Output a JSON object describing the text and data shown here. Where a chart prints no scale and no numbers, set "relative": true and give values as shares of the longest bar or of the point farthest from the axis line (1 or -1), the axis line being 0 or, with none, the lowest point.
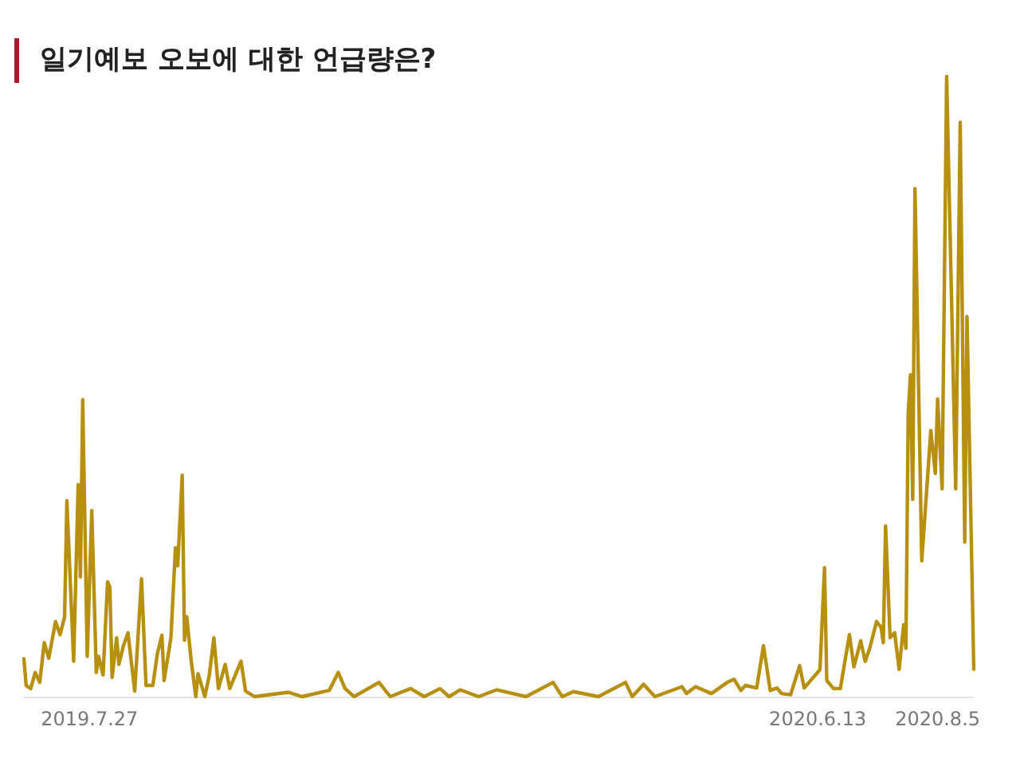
{
  "chart_data": {
    "type": "line",
    "title": "일기예보 오보에 대한 언급량은?",
    "relative": true,
    "marker": "none",
    "line_style": "solid",
    "grid": false,
    "xlim": [
      "2019-06-28",
      "2020-08-21"
    ],
    "xticks": [
      {
        "value": "2019-07-27",
        "label": "2019.7.27"
      },
      {
        "value": "2020-06-13",
        "label": "2020.6.13"
      },
      {
        "value": "2020-08-05",
        "label": "2020.8.5"
      }
    ],
    "series": [
      {
        "color": "#b8900f",
        "x": [
          "2019-06-28",
          "2019-06-29",
          "2019-07-01",
          "2019-07-03",
          "2019-07-05",
          "2019-07-07",
          "2019-07-09",
          "2019-07-10",
          "2019-07-12",
          "2019-07-14",
          "2019-07-16",
          "2019-07-17",
          "2019-07-20",
          "2019-07-22",
          "2019-07-23",
          "2019-07-24",
          "2019-07-26",
          "2019-07-28",
          "2019-07-30",
          "2019-07-31",
          "2019-08-02",
          "2019-08-04",
          "2019-08-05",
          "2019-08-06",
          "2019-08-08",
          "2019-08-09",
          "2019-08-11",
          "2019-08-13",
          "2019-08-16",
          "2019-08-19",
          "2019-08-21",
          "2019-08-24",
          "2019-08-26",
          "2019-08-28",
          "2019-08-29",
          "2019-09-01",
          "2019-09-03",
          "2019-09-04",
          "2019-09-06",
          "2019-09-07",
          "2019-09-08",
          "2019-09-10",
          "2019-09-12",
          "2019-09-13",
          "2019-09-16",
          "2019-09-18",
          "2019-09-20",
          "2019-09-22",
          "2019-09-25",
          "2019-09-27",
          "2019-10-02",
          "2019-10-04",
          "2019-10-08",
          "2019-10-23",
          "2019-10-29",
          "2019-11-10",
          "2019-11-14",
          "2019-11-17",
          "2019-11-21",
          "2019-12-02",
          "2019-12-07",
          "2019-12-16",
          "2019-12-22",
          "2019-12-29",
          "2020-01-02",
          "2020-01-07",
          "2020-01-15",
          "2020-01-23",
          "2020-02-05",
          "2020-02-17",
          "2020-02-21",
          "2020-02-26",
          "2020-03-08",
          "2020-03-20",
          "2020-03-23",
          "2020-03-28",
          "2020-04-02",
          "2020-04-14",
          "2020-04-16",
          "2020-04-20",
          "2020-04-27",
          "2020-05-04",
          "2020-05-07",
          "2020-05-10",
          "2020-05-12",
          "2020-05-17",
          "2020-05-20",
          "2020-05-23",
          "2020-05-26",
          "2020-05-28",
          "2020-06-01",
          "2020-06-05",
          "2020-06-07",
          "2020-06-12",
          "2020-06-14",
          "2020-06-16",
          "2020-06-17",
          "2020-06-20",
          "2020-06-23",
          "2020-06-27",
          "2020-06-29",
          "2020-07-02",
          "2020-07-04",
          "2020-07-06",
          "2020-07-09",
          "2020-07-11",
          "2020-07-12",
          "2020-07-13",
          "2020-07-15",
          "2020-07-17",
          "2020-07-19",
          "2020-07-21",
          "2020-07-22",
          "2020-07-23",
          "2020-07-24",
          "2020-07-25",
          "2020-07-26",
          "2020-07-29",
          "2020-08-02",
          "2020-08-04",
          "2020-08-05",
          "2020-08-07",
          "2020-08-09",
          "2020-08-13",
          "2020-08-15",
          "2020-08-17",
          "2020-08-18",
          "2020-08-21"
        ],
        "values": [
          0.061,
          0.018,
          0.013,
          0.039,
          0.023,
          0.087,
          0.062,
          0.082,
          0.121,
          0.1,
          0.129,
          0.316,
          0.057,
          0.342,
          0.193,
          0.479,
          0.065,
          0.3,
          0.039,
          0.065,
          0.035,
          0.185,
          0.177,
          0.031,
          0.095,
          0.052,
          0.082,
          0.103,
          0.009,
          0.19,
          0.018,
          0.018,
          0.069,
          0.099,
          0.026,
          0.095,
          0.24,
          0.211,
          0.357,
          0.091,
          0.129,
          0.057,
          0,
          0.037,
          0,
          0.035,
          0.095,
          0.013,
          0.052,
          0.013,
          0.057,
          0.009,
          0,
          0.007,
          0,
          0.01,
          0.039,
          0.013,
          0,
          0.023,
          0,
          0.013,
          0,
          0.013,
          0,
          0.011,
          0,
          0.011,
          0,
          0.023,
          0,
          0.008,
          0,
          0.023,
          0,
          0.02,
          0,
          0.016,
          0.005,
          0.016,
          0.005,
          0.023,
          0.028,
          0.01,
          0.018,
          0.014,
          0.082,
          0.01,
          0.014,
          0.005,
          0.003,
          0.05,
          0.014,
          0.035,
          0.044,
          0.208,
          0.026,
          0.013,
          0.013,
          0.1,
          0.048,
          0.09,
          0.057,
          0.078,
          0.121,
          0.112,
          0.087,
          0.275,
          0.095,
          0.103,
          0.044,
          0.116,
          0.078,
          0.455,
          0.519,
          0.318,
          0.819,
          0.219,
          0.429,
          0.36,
          0.48,
          0.335,
          1,
          0.335,
          0.926,
          0.249,
          0.613,
          0.044
        ]
      }
    ]
  }
}
